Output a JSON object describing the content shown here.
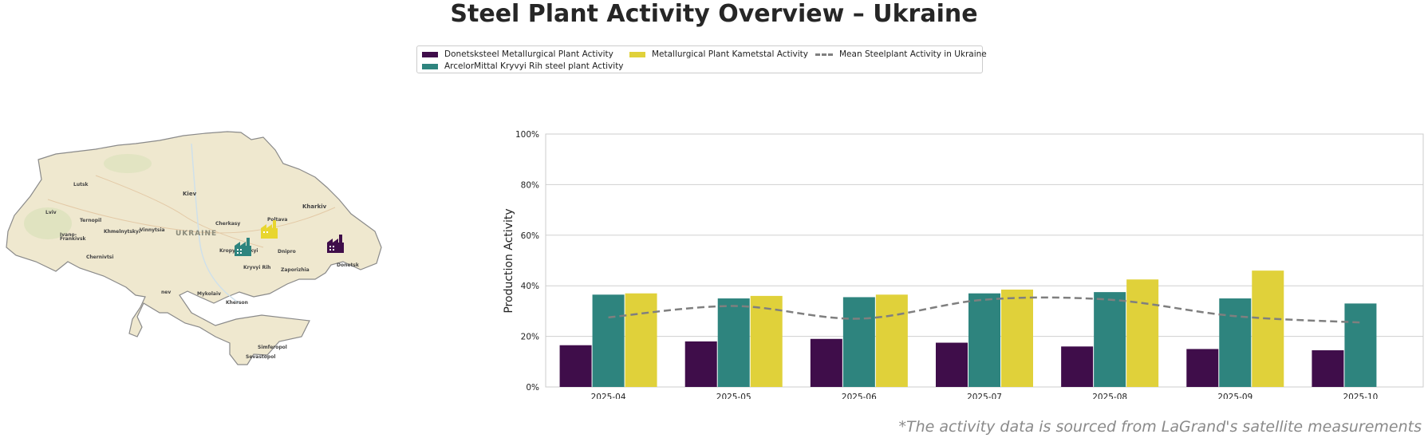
{
  "title": "Steel Plant Activity Overview – Ukraine",
  "footnote": "*The activity data is sourced from LaGrand's satellite measurements",
  "legend": {
    "items": [
      {
        "label": "Donetsksteel Metallurgical Plant Activity",
        "color": "#3f0d4a"
      },
      {
        "label": "ArcelorMittal Kryvyi Rih steel plant Activity",
        "color": "#2e847e"
      },
      {
        "label": "Metallurgical Plant Kametstal Activity",
        "color": "#e0d13a"
      },
      {
        "label": "Mean Steelplant Activity in Ukraine",
        "color": "#7f7f7f"
      }
    ]
  },
  "map": {
    "country_label": "UKRAINE",
    "cities": [
      "Lutsk",
      "Kiev",
      "Kharkiv",
      "Lviv",
      "Ternopil",
      "Khmelnytskyi",
      "Vinnytsia",
      "Cherkasy",
      "Poltava",
      "Ivano-",
      "Frankivsk",
      "Chernivtsi",
      "Kropyvnytskyi",
      "Dnipro",
      "Kryvyi Rih",
      "Zaporizhia",
      "Donetsk",
      "Mykolaiv",
      "Kherson",
      "Simferopol",
      "Sevastopol",
      "nev"
    ],
    "markers": [
      {
        "name": "ArcelorMittal Kryvyi Rih",
        "color": "#2e847e",
        "icon": "factory-icon"
      },
      {
        "name": "Kametstal",
        "color": "#e8d62f",
        "icon": "factory-icon"
      },
      {
        "name": "Donetsksteel",
        "color": "#3f0d4a",
        "icon": "factory-icon"
      }
    ]
  },
  "chart_data": {
    "type": "bar",
    "title": "",
    "xlabel": "",
    "ylabel": "Production Activity",
    "ylim": [
      0,
      100
    ],
    "yticks": [
      "0%",
      "20%",
      "40%",
      "60%",
      "80%",
      "100%"
    ],
    "grid": true,
    "categories": [
      "2025-04",
      "2025-05",
      "2025-06",
      "2025-07",
      "2025-08",
      "2025-09",
      "2025-10"
    ],
    "series": [
      {
        "name": "Donetsksteel Metallurgical Plant Activity",
        "type": "bar",
        "color": "#3f0d4a",
        "values": [
          16.5,
          18,
          19,
          17.5,
          16,
          15,
          14.5
        ]
      },
      {
        "name": "ArcelorMittal Kryvyi Rih steel plant Activity",
        "type": "bar",
        "color": "#2e847e",
        "values": [
          36.5,
          35,
          35.5,
          37,
          37.5,
          35,
          33
        ]
      },
      {
        "name": "Metallurgical Plant Kametstal Activity",
        "type": "bar",
        "color": "#e0d13a",
        "values": [
          37,
          36,
          36.5,
          38.5,
          42.5,
          46,
          null
        ]
      },
      {
        "name": "Mean Steelplant Activity in Ukraine",
        "type": "line",
        "color": "#7f7f7f",
        "values": [
          27.5,
          32,
          27,
          34.5,
          34.5,
          28,
          25.5
        ]
      }
    ]
  }
}
